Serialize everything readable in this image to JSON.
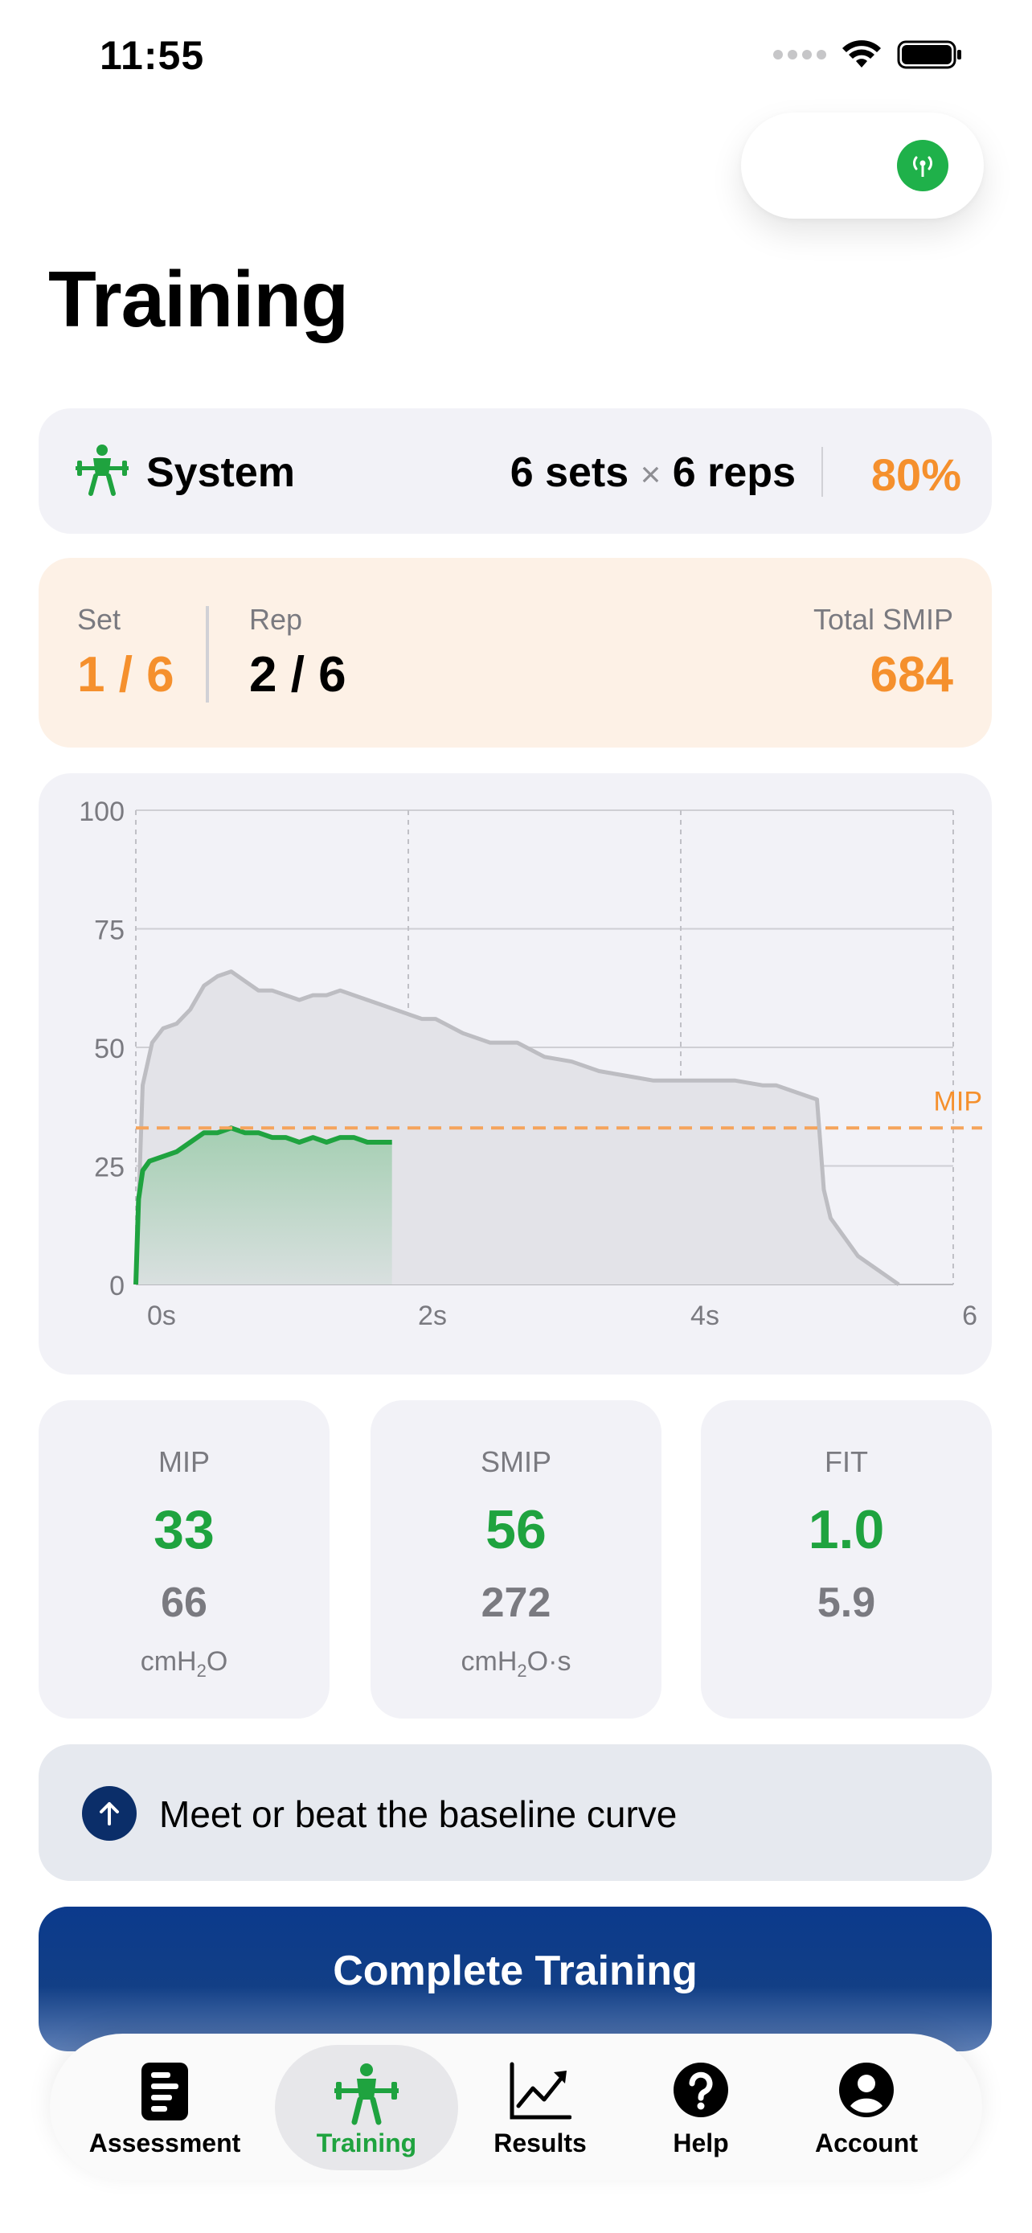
{
  "status_bar": {
    "time": "11:55"
  },
  "page": {
    "title": "Training"
  },
  "colors": {
    "accent_green": "#1fa33f",
    "accent_orange": "#f5902d",
    "navy": "#0b3a8c"
  },
  "system": {
    "icon": "barbell-person-icon",
    "name": "System",
    "sets": "6 sets",
    "times": "×",
    "reps": "6 reps",
    "percent": "80%"
  },
  "progress": {
    "set_label": "Set",
    "set_value": "1 / 6",
    "rep_label": "Rep",
    "rep_value": "2 / 6",
    "total_label": "Total SMIP",
    "total_value": "684"
  },
  "chart_data": {
    "type": "area",
    "y_ticks": [
      "100",
      "75",
      "50",
      "25",
      "0"
    ],
    "x_ticks": [
      "0s",
      "2s",
      "4s",
      "6"
    ],
    "xlim": [
      0,
      6
    ],
    "ylim": [
      0,
      100
    ],
    "threshold": {
      "label": "MIP",
      "value": 33
    },
    "series": [
      {
        "kind": "baseline",
        "x": [
          0,
          0.05,
          0.12,
          0.2,
          0.3,
          0.4,
          0.5,
          0.6,
          0.7,
          0.8,
          0.9,
          1.0,
          1.1,
          1.2,
          1.3,
          1.4,
          1.5,
          1.6,
          1.7,
          1.8,
          1.9,
          2.0,
          2.1,
          2.2,
          2.4,
          2.6,
          2.8,
          3.0,
          3.2,
          3.4,
          3.6,
          3.8,
          4.0,
          4.2,
          4.4,
          4.6,
          4.7,
          4.8,
          4.9,
          5.0,
          5.05,
          5.1,
          5.2,
          5.3,
          5.45,
          5.6
        ],
        "y": [
          0,
          42,
          51,
          54,
          55,
          58,
          63,
          65,
          66,
          64,
          62,
          62,
          61,
          60,
          61,
          61,
          62,
          61,
          60,
          59,
          58,
          57,
          56,
          56,
          53,
          51,
          51,
          48,
          47,
          45,
          44,
          43,
          43,
          43,
          43,
          42,
          42,
          41,
          40,
          39,
          20,
          14,
          10,
          6,
          3,
          0
        ]
      },
      {
        "kind": "current",
        "x": [
          0,
          0.02,
          0.05,
          0.1,
          0.2,
          0.3,
          0.4,
          0.5,
          0.6,
          0.7,
          0.8,
          0.9,
          1.0,
          1.1,
          1.2,
          1.3,
          1.4,
          1.5,
          1.6,
          1.7,
          1.8,
          1.88
        ],
        "y": [
          0,
          18,
          24,
          26,
          27,
          28,
          30,
          32,
          32,
          33,
          32,
          32,
          31,
          31,
          30,
          31,
          30,
          31,
          31,
          30,
          30,
          30
        ]
      }
    ]
  },
  "stats": [
    {
      "title": "MIP",
      "current": "33",
      "baseline": "66",
      "unit_main": "cmH",
      "unit_sub": "2",
      "unit_tail": "O"
    },
    {
      "title": "SMIP",
      "current": "56",
      "baseline": "272",
      "unit_main": "cmH",
      "unit_sub": "2",
      "unit_tail": "O·s"
    },
    {
      "title": "FIT",
      "current": "1.0",
      "baseline": "5.9"
    }
  ],
  "tip": {
    "icon": "arrow-up-circle-icon",
    "text": "Meet or beat the baseline curve"
  },
  "cta": {
    "label": "Complete Training"
  },
  "tabs": [
    {
      "label": "Assessment",
      "icon": "clipboard-icon"
    },
    {
      "label": "Training",
      "icon": "barbell-person-icon",
      "active": true
    },
    {
      "label": "Results",
      "icon": "chart-trend-icon"
    },
    {
      "label": "Help",
      "icon": "help-circle-icon"
    },
    {
      "label": "Account",
      "icon": "account-circle-icon"
    }
  ]
}
